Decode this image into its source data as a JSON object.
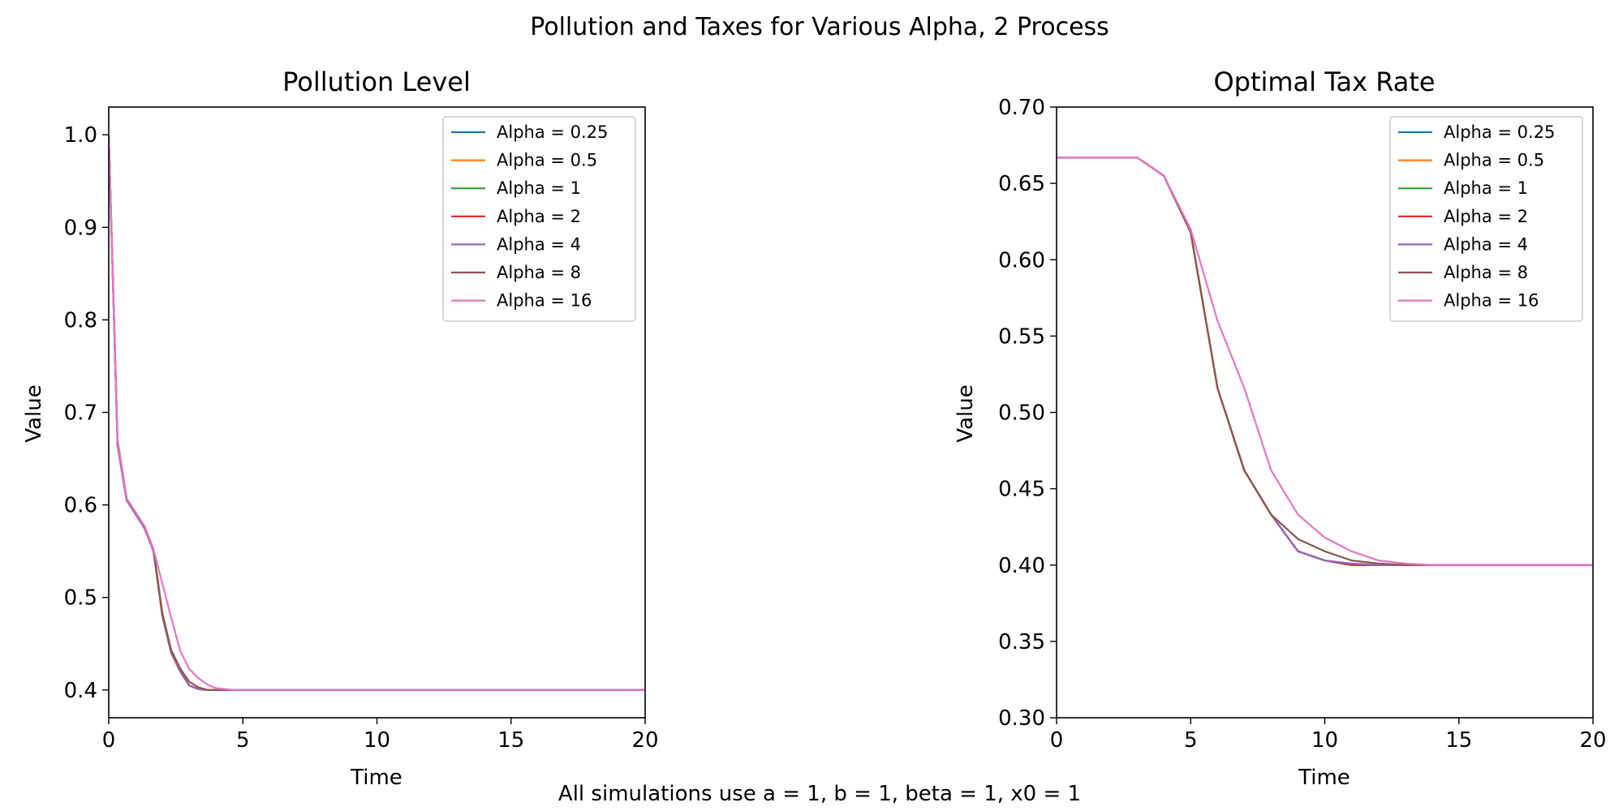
{
  "figure": {
    "suptitle": "Pollution and Taxes for Various Alpha, 2 Process",
    "caption": "All simulations use a = 1, b = 1, beta = 1, x0 = 1"
  },
  "colors": [
    "#1f77b4",
    "#ff7f0e",
    "#2ca02c",
    "#d62728",
    "#9467bd",
    "#8c564b",
    "#e377c2"
  ],
  "chart_data": [
    {
      "type": "line",
      "title": "Pollution Level",
      "xlabel": "Time",
      "ylabel": "Value",
      "xlim": [
        0,
        20
      ],
      "ylim": [
        0.37,
        1.03
      ],
      "xticks": [
        0,
        5,
        10,
        15,
        20
      ],
      "yticks": [
        0.4,
        0.5,
        0.6,
        0.7,
        0.8,
        0.9,
        1.0
      ],
      "ytick_labels": [
        "0.4",
        "0.5",
        "0.6",
        "0.7",
        "0.8",
        "0.9",
        "1.0"
      ],
      "grid": false,
      "legend": "upper right",
      "series": [
        {
          "name": "Alpha = 0.25",
          "x": [
            0,
            0.33,
            0.67,
            1,
            1.33,
            1.67,
            2,
            2.33,
            2.67,
            3,
            3.33,
            3.67,
            4,
            4.33,
            4.67,
            5,
            6,
            8,
            10,
            12,
            14,
            16,
            18,
            20
          ],
          "y": [
            1.0,
            0.665,
            0.605,
            0.59,
            0.575,
            0.55,
            0.48,
            0.44,
            0.42,
            0.405,
            0.401,
            0.4,
            0.4,
            0.4,
            0.4,
            0.4,
            0.4,
            0.4,
            0.4,
            0.4,
            0.4,
            0.4,
            0.4,
            0.4
          ]
        },
        {
          "name": "Alpha = 0.5",
          "x": [
            0,
            0.33,
            0.67,
            1,
            1.33,
            1.67,
            2,
            2.33,
            2.67,
            3,
            3.33,
            3.67,
            4,
            4.33,
            4.67,
            5,
            6,
            8,
            10,
            12,
            14,
            16,
            18,
            20
          ],
          "y": [
            1.0,
            0.665,
            0.605,
            0.59,
            0.575,
            0.55,
            0.48,
            0.44,
            0.42,
            0.405,
            0.401,
            0.4,
            0.4,
            0.4,
            0.4,
            0.4,
            0.4,
            0.4,
            0.4,
            0.4,
            0.4,
            0.4,
            0.4,
            0.4
          ]
        },
        {
          "name": "Alpha = 1",
          "x": [
            0,
            0.33,
            0.67,
            1,
            1.33,
            1.67,
            2,
            2.33,
            2.67,
            3,
            3.33,
            3.67,
            4,
            4.33,
            4.67,
            5,
            6,
            8,
            10,
            12,
            14,
            16,
            18,
            20
          ],
          "y": [
            1.0,
            0.665,
            0.605,
            0.59,
            0.575,
            0.55,
            0.48,
            0.44,
            0.42,
            0.405,
            0.401,
            0.4,
            0.4,
            0.4,
            0.4,
            0.4,
            0.4,
            0.4,
            0.4,
            0.4,
            0.4,
            0.4,
            0.4,
            0.4
          ]
        },
        {
          "name": "Alpha = 2",
          "x": [
            0,
            0.33,
            0.67,
            1,
            1.33,
            1.67,
            2,
            2.33,
            2.67,
            3,
            3.33,
            3.67,
            4,
            4.33,
            4.67,
            5,
            6,
            8,
            10,
            12,
            14,
            16,
            18,
            20
          ],
          "y": [
            1.0,
            0.665,
            0.605,
            0.59,
            0.575,
            0.55,
            0.48,
            0.44,
            0.42,
            0.405,
            0.401,
            0.4,
            0.4,
            0.4,
            0.4,
            0.4,
            0.4,
            0.4,
            0.4,
            0.4,
            0.4,
            0.4,
            0.4,
            0.4
          ]
        },
        {
          "name": "Alpha = 4",
          "x": [
            0,
            0.33,
            0.67,
            1,
            1.33,
            1.67,
            2,
            2.33,
            2.67,
            3,
            3.33,
            3.67,
            4,
            4.33,
            4.67,
            5,
            6,
            8,
            10,
            12,
            14,
            16,
            18,
            20
          ],
          "y": [
            1.0,
            0.665,
            0.605,
            0.59,
            0.575,
            0.55,
            0.48,
            0.44,
            0.42,
            0.405,
            0.401,
            0.4,
            0.4,
            0.4,
            0.4,
            0.4,
            0.4,
            0.4,
            0.4,
            0.4,
            0.4,
            0.4,
            0.4,
            0.4
          ]
        },
        {
          "name": "Alpha = 8",
          "x": [
            0,
            0.33,
            0.67,
            1,
            1.33,
            1.67,
            2,
            2.33,
            2.67,
            3,
            3.33,
            3.67,
            4,
            4.33,
            4.67,
            5,
            6,
            8,
            10,
            12,
            14,
            16,
            18,
            20
          ],
          "y": [
            1.0,
            0.67,
            0.607,
            0.592,
            0.577,
            0.552,
            0.483,
            0.443,
            0.423,
            0.409,
            0.403,
            0.4,
            0.4,
            0.4,
            0.4,
            0.4,
            0.4,
            0.4,
            0.4,
            0.4,
            0.4,
            0.4,
            0.4,
            0.4
          ]
        },
        {
          "name": "Alpha = 16",
          "x": [
            0,
            0.33,
            0.67,
            1,
            1.33,
            1.67,
            2,
            2.33,
            2.67,
            3,
            3.33,
            3.67,
            4,
            4.33,
            4.67,
            5,
            6,
            8,
            10,
            12,
            14,
            16,
            18,
            20
          ],
          "y": [
            1.0,
            0.67,
            0.607,
            0.592,
            0.577,
            0.552,
            0.515,
            0.478,
            0.442,
            0.423,
            0.413,
            0.406,
            0.402,
            0.401,
            0.4,
            0.4,
            0.4,
            0.4,
            0.4,
            0.4,
            0.4,
            0.4,
            0.4,
            0.4
          ]
        }
      ]
    },
    {
      "type": "line",
      "title": "Optimal Tax Rate",
      "xlabel": "Time",
      "ylabel": "Value",
      "xlim": [
        0,
        20
      ],
      "ylim": [
        0.3,
        0.7
      ],
      "xticks": [
        0,
        5,
        10,
        15,
        20
      ],
      "yticks": [
        0.3,
        0.35,
        0.4,
        0.45,
        0.5,
        0.55,
        0.6,
        0.65,
        0.7
      ],
      "ytick_labels": [
        "0.30",
        "0.35",
        "0.40",
        "0.45",
        "0.50",
        "0.55",
        "0.60",
        "0.65",
        "0.70"
      ],
      "grid": false,
      "legend": "upper right",
      "series": [
        {
          "name": "Alpha = 0.25",
          "x": [
            0,
            1,
            2,
            3,
            4,
            5,
            6,
            7,
            8,
            9,
            10,
            11,
            12,
            13,
            14,
            15,
            16,
            17,
            18,
            19,
            20
          ],
          "y": [
            0.667,
            0.667,
            0.667,
            0.667,
            0.655,
            0.618,
            0.516,
            0.462,
            0.433,
            0.409,
            0.403,
            0.4,
            0.4,
            0.4,
            0.4,
            0.4,
            0.4,
            0.4,
            0.4,
            0.4,
            0.4
          ]
        },
        {
          "name": "Alpha = 0.5",
          "x": [
            0,
            1,
            2,
            3,
            4,
            5,
            6,
            7,
            8,
            9,
            10,
            11,
            12,
            13,
            14,
            15,
            16,
            17,
            18,
            19,
            20
          ],
          "y": [
            0.667,
            0.667,
            0.667,
            0.667,
            0.655,
            0.618,
            0.516,
            0.462,
            0.433,
            0.409,
            0.403,
            0.4,
            0.4,
            0.4,
            0.4,
            0.4,
            0.4,
            0.4,
            0.4,
            0.4,
            0.4
          ]
        },
        {
          "name": "Alpha = 1",
          "x": [
            0,
            1,
            2,
            3,
            4,
            5,
            6,
            7,
            8,
            9,
            10,
            11,
            12,
            13,
            14,
            15,
            16,
            17,
            18,
            19,
            20
          ],
          "y": [
            0.667,
            0.667,
            0.667,
            0.667,
            0.655,
            0.618,
            0.516,
            0.462,
            0.433,
            0.409,
            0.403,
            0.4,
            0.4,
            0.4,
            0.4,
            0.4,
            0.4,
            0.4,
            0.4,
            0.4,
            0.4
          ]
        },
        {
          "name": "Alpha = 2",
          "x": [
            0,
            1,
            2,
            3,
            4,
            5,
            6,
            7,
            8,
            9,
            10,
            11,
            12,
            13,
            14,
            15,
            16,
            17,
            18,
            19,
            20
          ],
          "y": [
            0.667,
            0.667,
            0.667,
            0.667,
            0.655,
            0.618,
            0.516,
            0.462,
            0.433,
            0.409,
            0.403,
            0.4,
            0.4,
            0.4,
            0.4,
            0.4,
            0.4,
            0.4,
            0.4,
            0.4,
            0.4
          ]
        },
        {
          "name": "Alpha = 4",
          "x": [
            0,
            1,
            2,
            3,
            4,
            5,
            6,
            7,
            8,
            9,
            10,
            11,
            12,
            13,
            14,
            15,
            16,
            17,
            18,
            19,
            20
          ],
          "y": [
            0.667,
            0.667,
            0.667,
            0.667,
            0.655,
            0.618,
            0.516,
            0.462,
            0.433,
            0.409,
            0.403,
            0.401,
            0.4,
            0.4,
            0.4,
            0.4,
            0.4,
            0.4,
            0.4,
            0.4,
            0.4
          ]
        },
        {
          "name": "Alpha = 8",
          "x": [
            0,
            1,
            2,
            3,
            4,
            5,
            6,
            7,
            8,
            9,
            10,
            11,
            12,
            13,
            14,
            15,
            16,
            17,
            18,
            19,
            20
          ],
          "y": [
            0.667,
            0.667,
            0.667,
            0.667,
            0.655,
            0.618,
            0.516,
            0.462,
            0.433,
            0.417,
            0.409,
            0.403,
            0.401,
            0.4,
            0.4,
            0.4,
            0.4,
            0.4,
            0.4,
            0.4,
            0.4
          ]
        },
        {
          "name": "Alpha = 16",
          "x": [
            0,
            1,
            2,
            3,
            4,
            5,
            6,
            7,
            8,
            9,
            10,
            11,
            12,
            13,
            14,
            15,
            16,
            17,
            18,
            19,
            20
          ],
          "y": [
            0.667,
            0.667,
            0.667,
            0.667,
            0.655,
            0.62,
            0.56,
            0.516,
            0.462,
            0.433,
            0.418,
            0.409,
            0.403,
            0.401,
            0.4,
            0.4,
            0.4,
            0.4,
            0.4,
            0.4,
            0.4
          ]
        }
      ]
    }
  ]
}
